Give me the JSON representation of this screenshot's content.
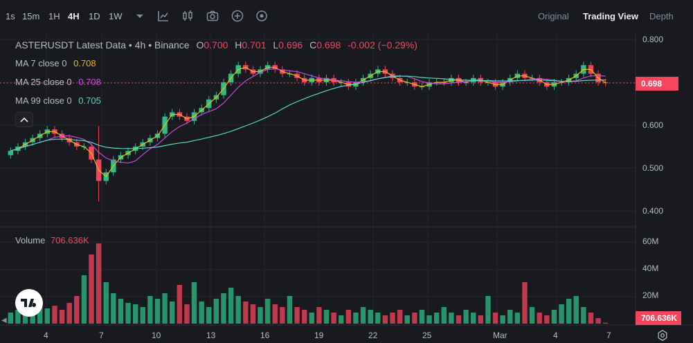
{
  "toolbar": {
    "intervals": [
      "1s",
      "15m",
      "1H",
      "4H",
      "1D",
      "1W"
    ],
    "active_interval": "4H",
    "views": [
      "Original",
      "Trading View",
      "Depth"
    ],
    "active_view": "Trading View",
    "icons": [
      "chevron-down-icon",
      "indicator-icon",
      "candle-settings-icon",
      "camera-icon",
      "add-icon",
      "settings-circle-icon"
    ]
  },
  "legend": {
    "symbol": "ASTERUSDT Latest Data",
    "interval": "4h",
    "exchange": "Binance",
    "open_label": "O",
    "open": "0.700",
    "high_label": "H",
    "high": "0.701",
    "low_label": "L",
    "low": "0.696",
    "close_label": "C",
    "close": "0.698",
    "change": "-0.002 (−0.29%)",
    "ma7_label": "MA 7 close 0",
    "ma7": "0.708",
    "ma25_label": "MA 25 close 0",
    "ma25": "0.708",
    "ma99_label": "MA 99 close 0",
    "ma99": "0.705",
    "volume_label": "Volume",
    "volume": "706.636K"
  },
  "price_tag": "0.698",
  "volume_tag": "706.636K",
  "y_axis": [
    "0.800",
    "0.700",
    "0.600",
    "0.500",
    "0.400"
  ],
  "vol_axis": [
    "60M",
    "40M",
    "20M"
  ],
  "x_axis": [
    "4",
    "7",
    "10",
    "13",
    "16",
    "19",
    "22",
    "25",
    "Mar",
    "4",
    "7"
  ],
  "colors": {
    "up": "#2ebd85",
    "down": "#f6465d",
    "ma7": "#f0b90b",
    "ma25": "#c94cd8",
    "ma99": "#5ad8c7",
    "bg": "#181a20",
    "grid": "#23262d"
  },
  "chart_data": {
    "type": "candlestick",
    "ylim": [
      0.4,
      0.8
    ],
    "x_ticks": [
      "4",
      "7",
      "10",
      "13",
      "16",
      "19",
      "22",
      "25",
      "Mar",
      "4",
      "7"
    ],
    "last_price": 0.698,
    "last_volume": "706.636K",
    "ma": [
      {
        "name": "MA 7 close 0",
        "value": 0.708
      },
      {
        "name": "MA 25 close 0",
        "value": 0.708
      },
      {
        "name": "MA 99 close 0",
        "value": 0.705
      }
    ],
    "closes": [
      0.54,
      0.55,
      0.56,
      0.57,
      0.58,
      0.59,
      0.58,
      0.57,
      0.56,
      0.55,
      0.55,
      0.52,
      0.47,
      0.49,
      0.52,
      0.53,
      0.54,
      0.55,
      0.56,
      0.57,
      0.58,
      0.62,
      0.63,
      0.62,
      0.61,
      0.63,
      0.64,
      0.66,
      0.67,
      0.7,
      0.72,
      0.74,
      0.73,
      0.72,
      0.73,
      0.74,
      0.73,
      0.72,
      0.72,
      0.71,
      0.7,
      0.71,
      0.7,
      0.71,
      0.7,
      0.7,
      0.69,
      0.7,
      0.71,
      0.72,
      0.73,
      0.72,
      0.71,
      0.7,
      0.7,
      0.69,
      0.69,
      0.7,
      0.7,
      0.7,
      0.71,
      0.7,
      0.7,
      0.71,
      0.7,
      0.7,
      0.69,
      0.7,
      0.71,
      0.72,
      0.71,
      0.71,
      0.7,
      0.69,
      0.7,
      0.7,
      0.71,
      0.72,
      0.74,
      0.72,
      0.7,
      0.698
    ],
    "volumes_m": [
      8,
      10,
      12,
      9,
      14,
      11,
      13,
      10,
      15,
      20,
      35,
      50,
      58,
      30,
      22,
      18,
      15,
      14,
      12,
      20,
      18,
      22,
      16,
      28,
      14,
      30,
      16,
      12,
      18,
      22,
      26,
      20,
      16,
      14,
      12,
      18,
      14,
      12,
      20,
      12,
      10,
      8,
      12,
      10,
      8,
      6,
      10,
      8,
      12,
      10,
      8,
      6,
      8,
      10,
      6,
      8,
      10,
      6,
      8,
      12,
      8,
      6,
      10,
      8,
      6,
      20,
      8,
      6,
      10,
      8,
      30,
      12,
      8,
      6,
      10,
      14,
      18,
      20,
      12,
      8,
      4,
      0.7
    ]
  }
}
